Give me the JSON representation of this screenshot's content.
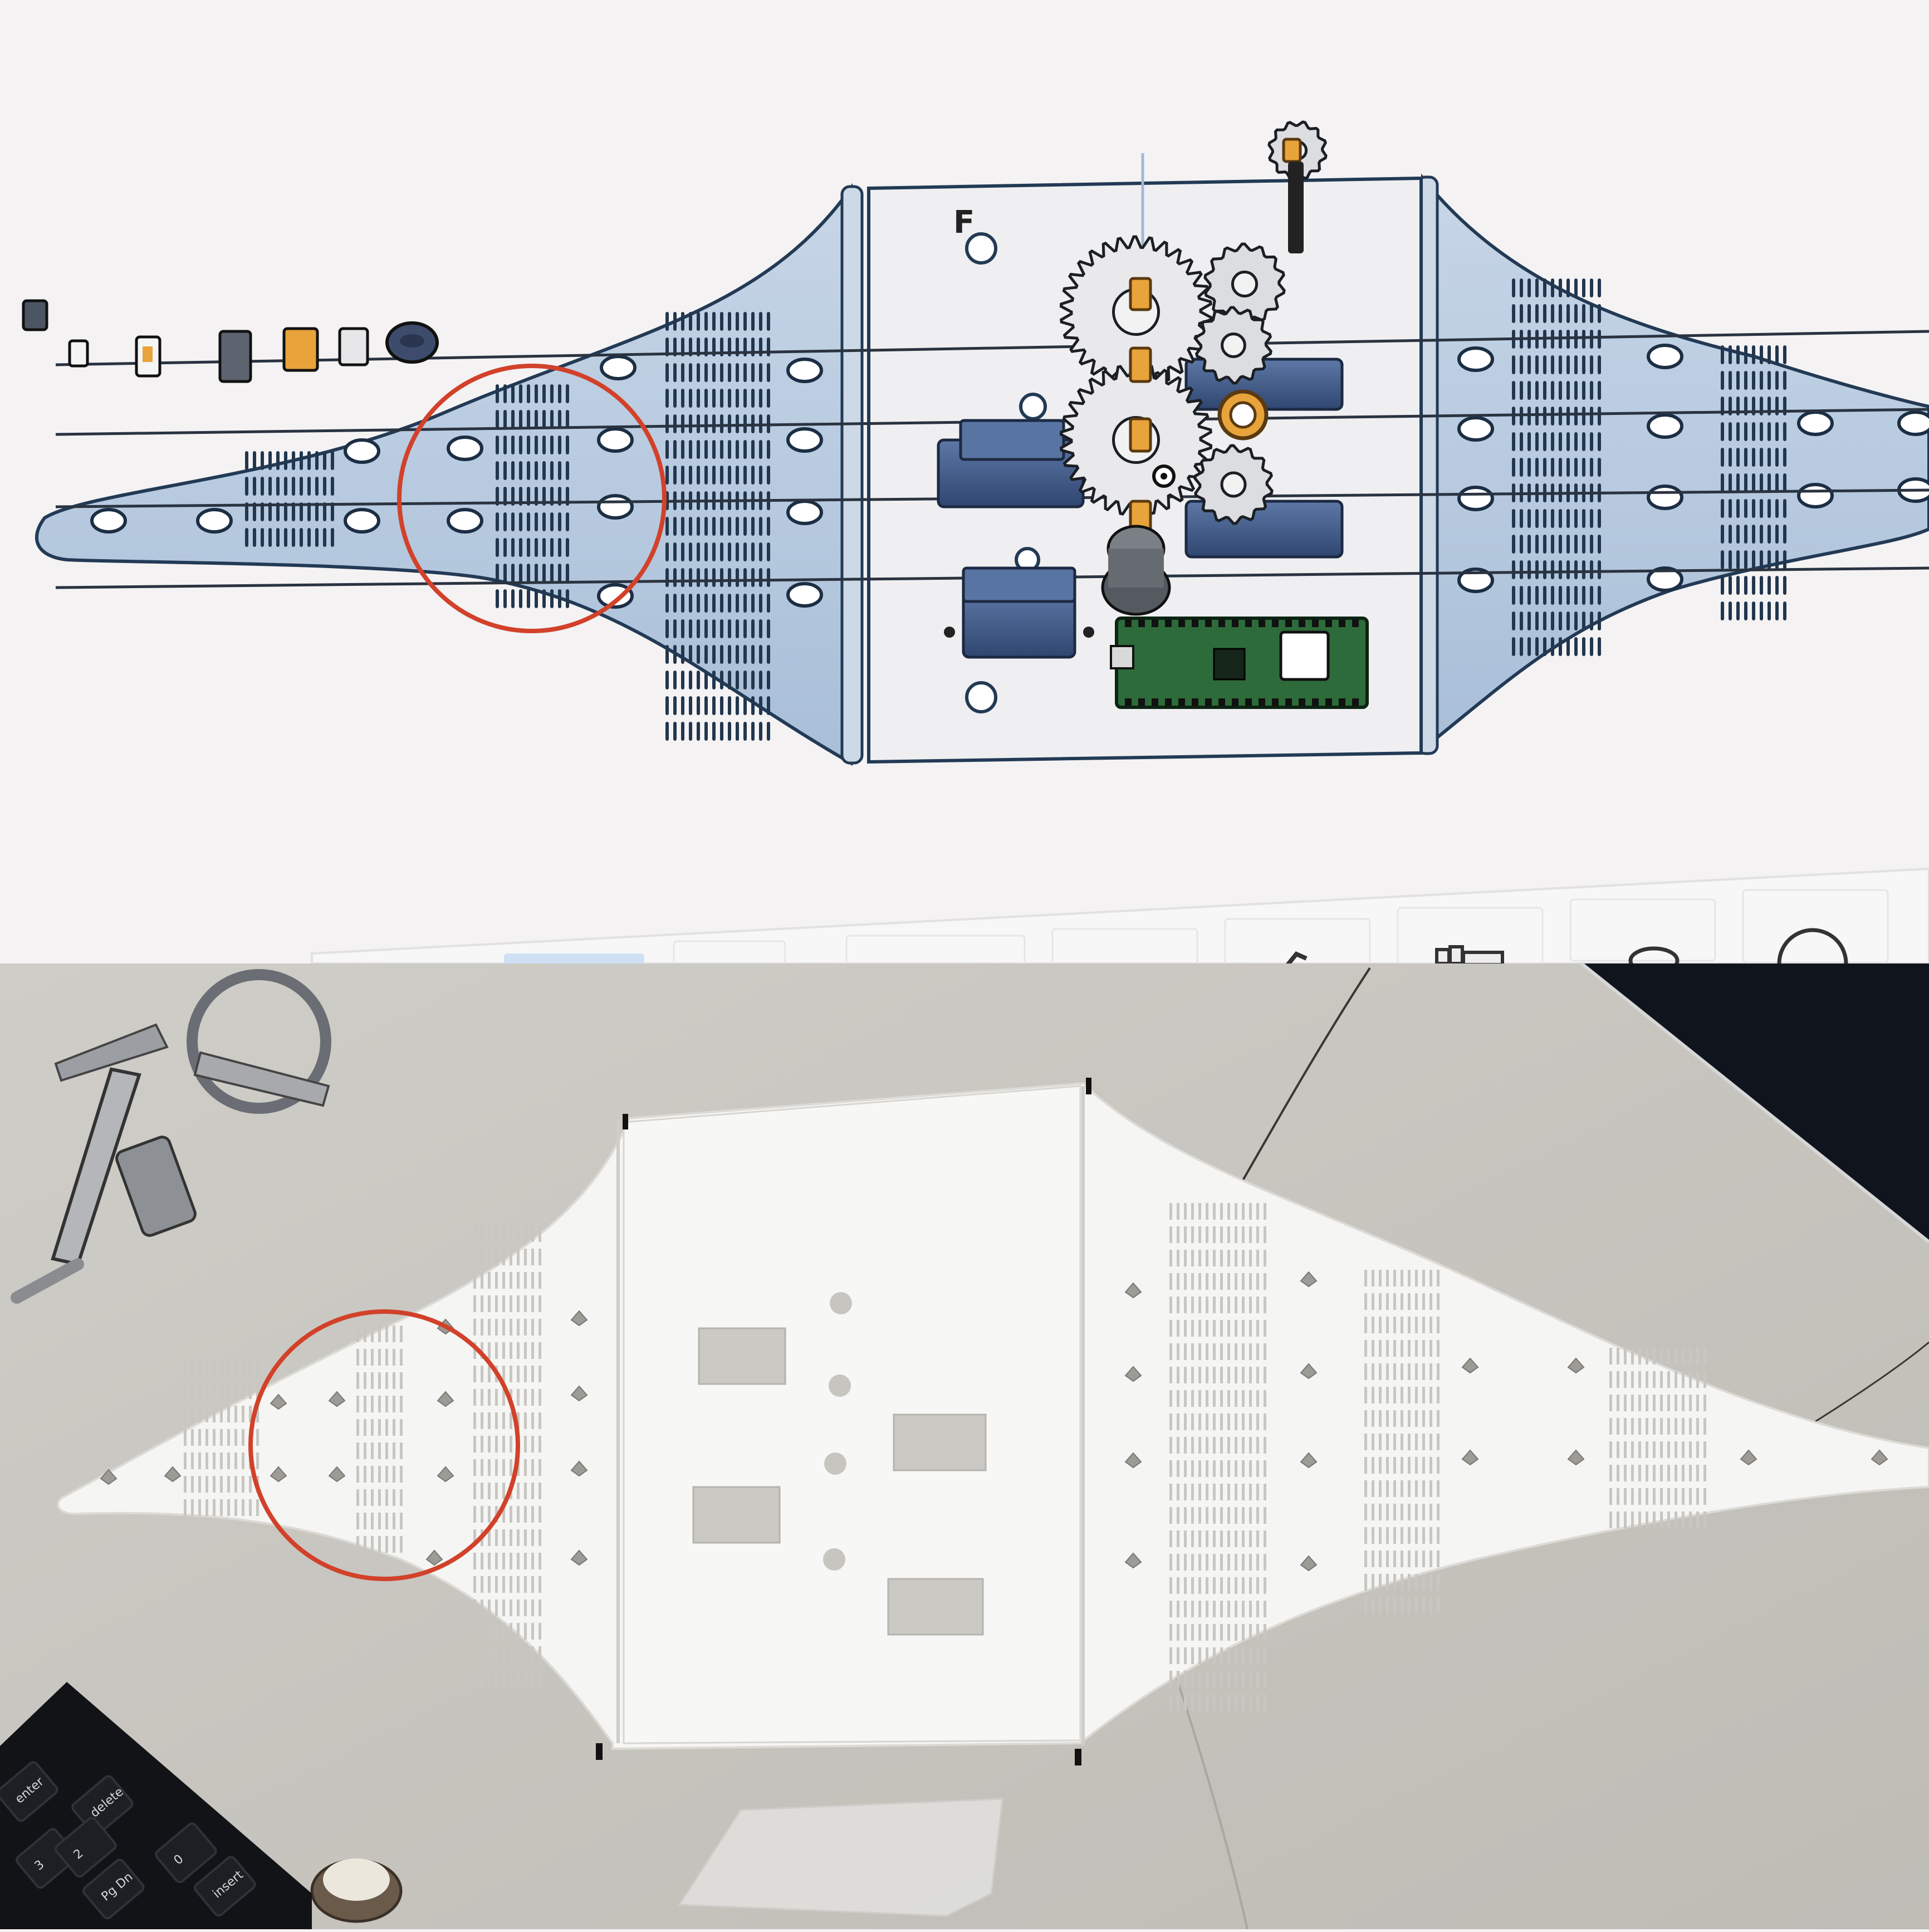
{
  "cad_render": {
    "plate_marking": "F",
    "background": "#f4f2f3",
    "part_color": "#b9cbe0",
    "plate_color": "#efeff1",
    "accent_orange": "#e8a33a",
    "pcb_green": "#2e6b3a",
    "servo_color": "#3e5a86",
    "side_parts": [
      "tiny-block-icon",
      "clip-icon",
      "bracket-icon",
      "orange-bracket-icon",
      "white-bracket-icon",
      "pulley-icon"
    ]
  },
  "photo": {
    "desk_color": "#c7c5bf",
    "print_color": "#f5f5f3",
    "keyboard_keys": [
      "insert",
      "Pg Dn",
      "delete",
      "3",
      "2",
      "0",
      "enter"
    ]
  },
  "highlight": {
    "circle_color": "#d2412a"
  }
}
